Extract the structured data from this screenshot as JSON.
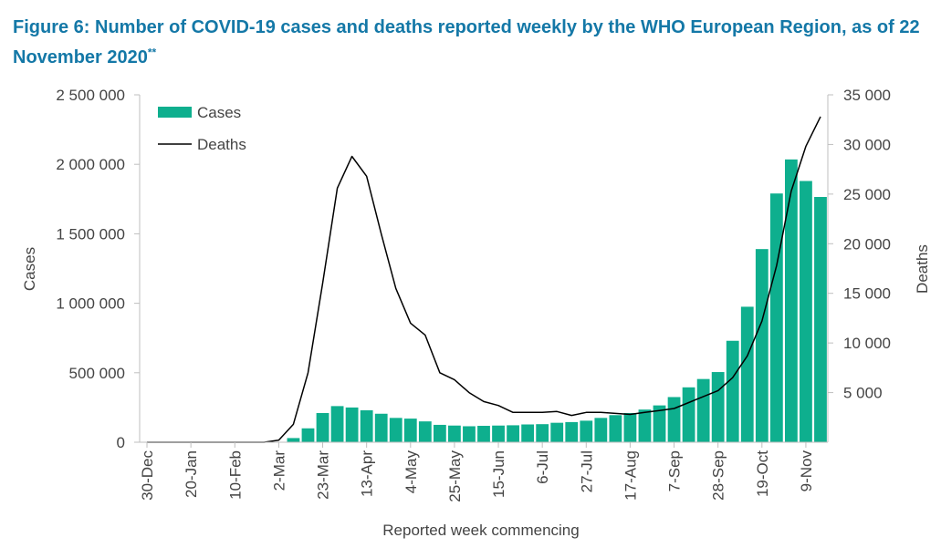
{
  "figure": {
    "title": "Figure 6: Number of COVID-19 cases and deaths reported weekly by the WHO European Region, as of 22 November 2020",
    "title_marker": "**"
  },
  "chart_data": {
    "type": "bar",
    "xlabel": "Reported week commencing",
    "ylabel": "Cases",
    "y2label": "Deaths",
    "ylim": [
      0,
      2500000
    ],
    "y2lim": [
      0,
      35000
    ],
    "yticks": [
      "0",
      "500 000",
      "1 000 000",
      "1 500 000",
      "2 000 000",
      "2 500 000"
    ],
    "y2ticks": [
      "5 000",
      "10 000",
      "15 000",
      "20 000",
      "25 000",
      "30 000",
      "35 000"
    ],
    "legend_position": "top-left",
    "colors": {
      "cases": "#0eaf8e",
      "deaths": "#000000"
    },
    "categories": [
      "30-Dec",
      "6-Jan",
      "13-Jan",
      "20-Jan",
      "27-Jan",
      "3-Feb",
      "10-Feb",
      "17-Feb",
      "24-Feb",
      "2-Mar",
      "9-Mar",
      "16-Mar",
      "23-Mar",
      "30-Mar",
      "6-Apr",
      "13-Apr",
      "20-Apr",
      "27-Apr",
      "4-May",
      "11-May",
      "18-May",
      "25-May",
      "1-Jun",
      "8-Jun",
      "15-Jun",
      "22-Jun",
      "29-Jun",
      "6-Jul",
      "13-Jul",
      "20-Jul",
      "27-Jul",
      "3-Aug",
      "10-Aug",
      "17-Aug",
      "24-Aug",
      "31-Aug",
      "7-Sep",
      "14-Sep",
      "21-Sep",
      "28-Sep",
      "5-Oct",
      "12-Oct",
      "19-Oct",
      "26-Oct",
      "2-Nov",
      "9-Nov",
      "16-Nov"
    ],
    "tick_labels": [
      "30-Dec",
      "20-Jan",
      "10-Feb",
      "2-Mar",
      "23-Mar",
      "13-Apr",
      "4-May",
      "25-May",
      "15-Jun",
      "6-Jul",
      "27-Jul",
      "17-Aug",
      "7-Sep",
      "28-Sep",
      "19-Oct",
      "9-Nov"
    ],
    "series": [
      {
        "name": "Cases",
        "type": "bar",
        "axis": "left",
        "values": [
          0,
          0,
          0,
          0,
          0,
          0,
          0,
          0,
          0,
          0,
          30000,
          100000,
          210000,
          260000,
          250000,
          230000,
          205000,
          175000,
          170000,
          150000,
          125000,
          120000,
          115000,
          118000,
          120000,
          122000,
          128000,
          130000,
          140000,
          145000,
          155000,
          175000,
          195000,
          210000,
          235000,
          265000,
          325000,
          395000,
          455000,
          505000,
          730000,
          975000,
          1390000,
          1790000,
          2035000,
          1880000,
          1765000
        ]
      },
      {
        "name": "Deaths",
        "type": "line",
        "axis": "right",
        "values": [
          0,
          0,
          0,
          0,
          0,
          0,
          0,
          0,
          0,
          200,
          1800,
          7000,
          16000,
          25600,
          28800,
          26800,
          21000,
          15500,
          12000,
          10800,
          7000,
          6300,
          5000,
          4100,
          3700,
          3000,
          3000,
          3000,
          3100,
          2700,
          3000,
          3000,
          2900,
          2800,
          3000,
          3200,
          3400,
          4000,
          4600,
          5200,
          6500,
          8700,
          12200,
          17800,
          25300,
          29800,
          32800
        ]
      }
    ]
  }
}
